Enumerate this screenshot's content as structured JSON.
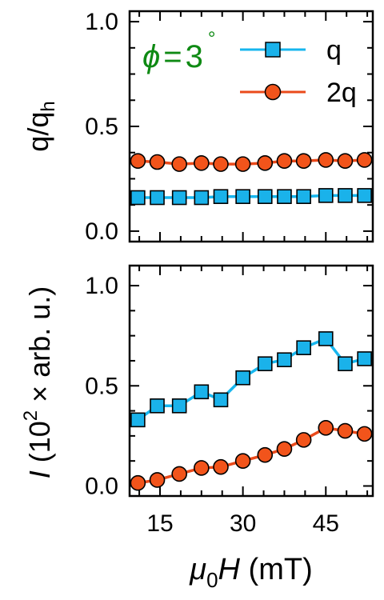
{
  "colors": {
    "q": "#1ab2ea",
    "q_line": "#17b6ee",
    "twoq": "#f2541b",
    "twoq_line": "#ea4a1b",
    "annotation": "#0f8a14",
    "axis": "#000000"
  },
  "chart_data": [
    {
      "type": "line",
      "panel": "top",
      "ylabel_main": "q/q",
      "ylabel_sub": "h",
      "annotation": {
        "symbol": "ϕ",
        "equals": "=",
        "value": "3",
        "degree": "°"
      },
      "legend": {
        "placement": "top-right",
        "entries": [
          "q",
          "2q"
        ]
      },
      "xlim": [
        9.5,
        53.5
      ],
      "ylim": [
        -0.05,
        1.05
      ],
      "yticks": [
        0.0,
        0.5,
        1.0
      ],
      "ytick_labels": [
        "0.0",
        "0.5",
        "1.0"
      ],
      "x": [
        11,
        14.5,
        18.5,
        22.5,
        26,
        30,
        34,
        37.5,
        41,
        45,
        48.5,
        52
      ],
      "series": [
        {
          "name": "q",
          "marker": "square",
          "values": [
            0.16,
            0.16,
            0.16,
            0.16,
            0.165,
            0.165,
            0.165,
            0.165,
            0.165,
            0.17,
            0.17,
            0.17
          ]
        },
        {
          "name": "2q",
          "marker": "circle",
          "values": [
            0.335,
            0.33,
            0.32,
            0.325,
            0.32,
            0.32,
            0.325,
            0.335,
            0.335,
            0.34,
            0.335,
            0.34
          ]
        }
      ]
    },
    {
      "type": "line",
      "panel": "bottom",
      "ylabel_symbol": "I",
      "ylabel_text": " (10",
      "ylabel_exp": "2",
      "ylabel_rest": " × arb. u.)",
      "xlabel_symbol": "μ",
      "xlabel_sub": "0",
      "xlabel_var": "H",
      "xlabel_unit": " (mT)",
      "xlim": [
        9.5,
        53.5
      ],
      "ylim": [
        -0.05,
        1.1
      ],
      "xticks": [
        15,
        30,
        45
      ],
      "xtick_labels": [
        "15",
        "30",
        "45"
      ],
      "yticks": [
        0.0,
        0.5,
        1.0
      ],
      "ytick_labels": [
        "0.0",
        "0.5",
        "1.0"
      ],
      "x": [
        11,
        14.5,
        18.5,
        22.5,
        26,
        30,
        34,
        37.5,
        41,
        45,
        48.5,
        52
      ],
      "series": [
        {
          "name": "q",
          "marker": "square",
          "values": [
            0.33,
            0.4,
            0.4,
            0.47,
            0.43,
            0.54,
            0.61,
            0.63,
            0.69,
            0.735,
            0.61,
            0.635
          ]
        },
        {
          "name": "2q",
          "marker": "circle",
          "values": [
            0.015,
            0.03,
            0.06,
            0.09,
            0.095,
            0.125,
            0.155,
            0.185,
            0.23,
            0.29,
            0.275,
            0.26
          ]
        }
      ]
    }
  ]
}
